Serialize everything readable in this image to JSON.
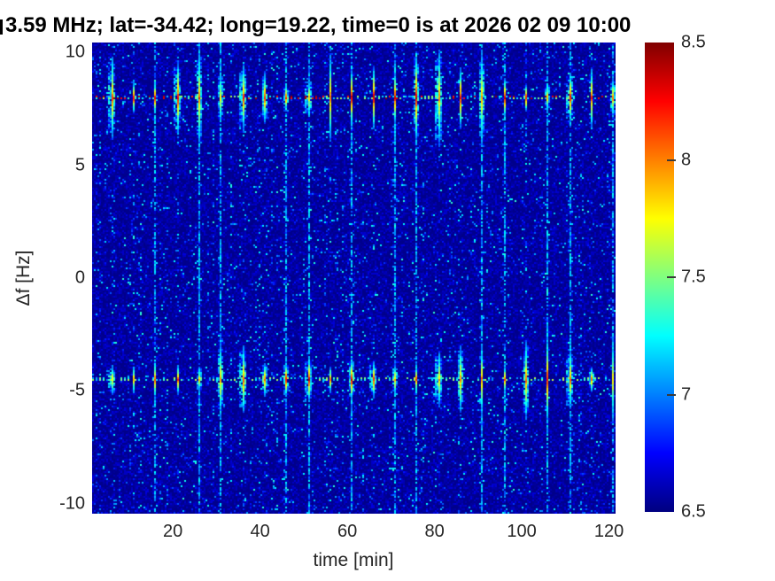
{
  "chart_data": {
    "type": "heatmap",
    "title": "3.59 MHz;  lat=-34.42; long=19.22, time=0 is at 2026 02 09 10:00",
    "title_note_clipped_left": true,
    "xlabel": "time [min]",
    "ylabel": "Δf [Hz]",
    "xlim": [
      1.5,
      121.5
    ],
    "ylim": [
      -10.45,
      10.45
    ],
    "xticks": [
      20,
      40,
      60,
      80,
      100,
      120
    ],
    "yticks": [
      10,
      5,
      0,
      -5,
      -10
    ],
    "colormap": "jet",
    "clim": [
      6.5,
      8.5
    ],
    "colorbar_ticks": [
      8.5,
      8,
      7.5,
      7,
      6.5
    ],
    "background_level": 6.55,
    "speckle_level_range": [
      6.8,
      7.4
    ],
    "bands": [
      {
        "df_hz": 8,
        "style": "dotted line with periodic vertical pulse streaks"
      },
      {
        "df_hz": -4.5,
        "style": "dotted line with periodic vertical pulse streaks"
      }
    ],
    "pulse_period_min": 5,
    "pulse_phase_min": 1,
    "pulse_peak_level": 8.3,
    "grid": {
      "nx": 296,
      "ny": 266
    },
    "seed": 42
  }
}
